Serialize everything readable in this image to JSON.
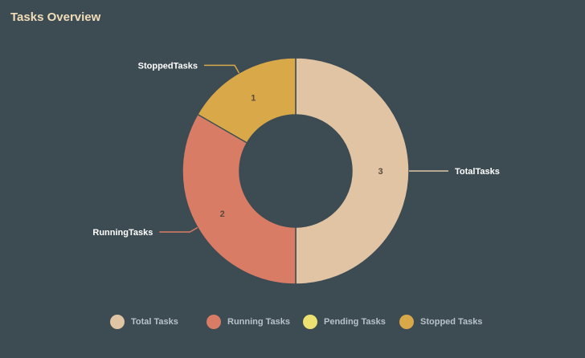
{
  "title": "Tasks Overview",
  "colors": {
    "background": "#3d4b53",
    "title": "#f0ddb8",
    "slice_value_text": "#5a4a3a",
    "callout_text": "#ffffff",
    "legend_text": "#b8c2c8"
  },
  "chart_data": {
    "type": "pie",
    "title": "Tasks Overview",
    "donut": true,
    "categories": [
      "TotalTasks",
      "RunningTasks",
      "PendingTasks",
      "StoppedTasks"
    ],
    "values": [
      3,
      2,
      0,
      1
    ],
    "value_labels": [
      "3",
      "2",
      "",
      "1"
    ],
    "colors": [
      "#e0c4a4",
      "#d97c66",
      "#ede171",
      "#d8a849"
    ],
    "legend": {
      "position": "bottom",
      "entries": [
        "Total Tasks",
        "Running Tasks",
        "Pending Tasks",
        "Stopped Tasks"
      ]
    }
  }
}
